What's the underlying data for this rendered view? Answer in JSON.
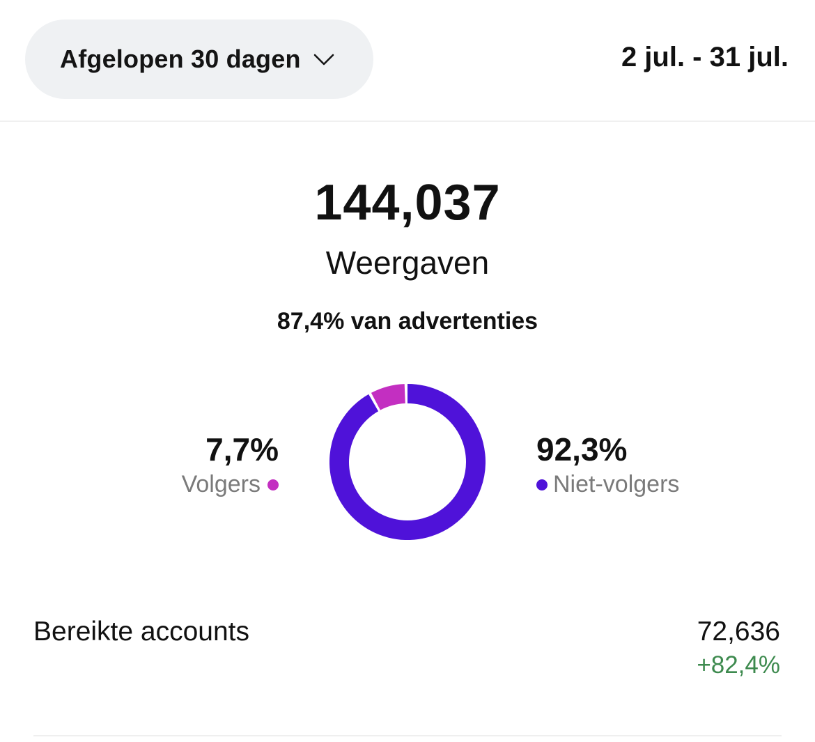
{
  "filter": {
    "range_label": "Afgelopen 30 dagen",
    "dropdown_icon": "chevron-down-icon",
    "date_range": "2 jul. - 31 jul."
  },
  "summary": {
    "total": "144,037",
    "metric_label": "Weergaven",
    "ads_share": "87,4% van advertenties"
  },
  "breakdown": {
    "followers": {
      "percent_text": "7,7%",
      "label": "Volgers",
      "value": 7.7,
      "color": "#c32fc1"
    },
    "non_followers": {
      "percent_text": "92,3%",
      "label": "Niet-volgers",
      "value": 92.3,
      "color": "#4f12d9"
    }
  },
  "reach": {
    "label": "Bereikte accounts",
    "value": "72,636",
    "change": "+82,4%",
    "change_color": "#3d8a4e"
  }
}
